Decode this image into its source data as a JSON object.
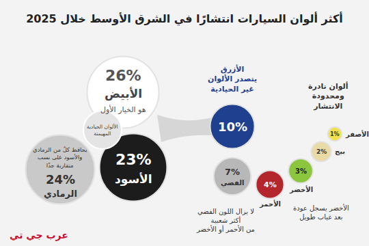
{
  "chart_data": {
    "type": "bubble",
    "title": "أكثر ألوان السيارات انتشارًا في الشرق الأوسط خلال 2025",
    "categories": [
      "الأبيض",
      "الأسود",
      "الرمادي",
      null,
      "الفضي",
      "الأحمر",
      "الأخضر",
      "بيج",
      "الأصفر"
    ],
    "values": [
      26,
      23,
      24,
      10,
      7,
      4,
      3,
      2,
      1
    ],
    "value_labels": [
      "26%",
      "23%",
      "24%",
      "10%",
      "7%",
      "4%",
      "3%",
      "2%",
      "1%"
    ],
    "colors": [
      "#ffffff",
      "#1c1c1c",
      "#c9c9c9",
      "#1f3f8f",
      "#b8b8b8",
      "#b3262b",
      "#8cc63f",
      "#e9dba6",
      "#f2e14c"
    ],
    "data_labels": true,
    "tick_labels": false,
    "annotations": [
      {
        "text": [
          "هو الخيار الأول"
        ]
      },
      {
        "text": [
          "يحافظ كلٌ من الرمادي",
          "والأسود على نسب",
          "متقاربة جدًا"
        ]
      },
      {
        "text": [
          "الألوان الحيادية",
          "المهيمنة"
        ]
      },
      {
        "text": [
          "الأزرق",
          "يتصدر الألوان",
          "غير الحيادية"
        ]
      },
      {
        "text": [
          "ألوان نادرة",
          "ومحدودة",
          "الانتشار"
        ]
      },
      {
        "text": [
          "لا يزال اللون الفضي",
          "أكثر شعبية",
          "من الأحمر أو الأخضر"
        ]
      },
      {
        "text": [
          "الأخضر يسجل عودة",
          "بعد غياب طويل"
        ]
      }
    ],
    "brand": "عرب جي تي"
  }
}
